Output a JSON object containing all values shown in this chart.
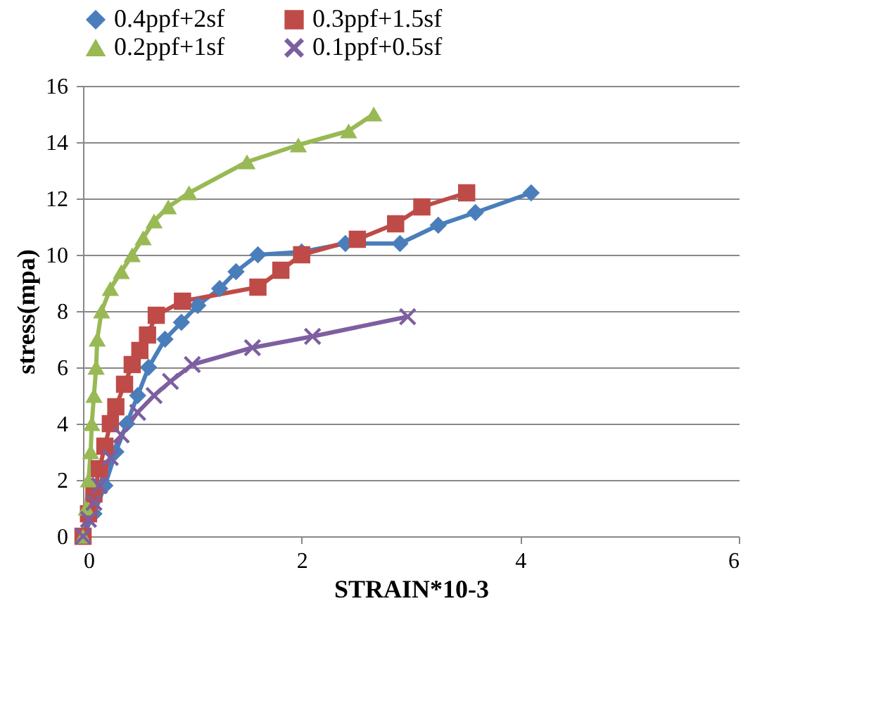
{
  "chart_data": {
    "type": "line",
    "xlabel": "STRAIN*10-3",
    "ylabel": "stress(mpa)",
    "xlim": [
      0,
      6
    ],
    "xticks": [
      0,
      2,
      4,
      6
    ],
    "ylim": [
      0,
      16
    ],
    "yticks": [
      0,
      2,
      4,
      6,
      8,
      10,
      12,
      14,
      16
    ],
    "grid": "y",
    "legend": "top",
    "line_style": "solid",
    "series": [
      {
        "name": "0.4ppf+2sf",
        "color": "#4a7ebb",
        "marker": "diamond",
        "x": [
          0,
          0.1,
          0.2,
          0.3,
          0.4,
          0.5,
          0.6,
          0.75,
          0.9,
          1.05,
          1.25,
          1.4,
          1.6,
          2.0,
          2.4,
          2.9,
          3.25,
          3.59,
          4.1
        ],
        "values": [
          0,
          0.8,
          1.8,
          3,
          4,
          5,
          6,
          7,
          7.6,
          8.2,
          8.8,
          9.4,
          10,
          10.1,
          10.4,
          10.4,
          11.05,
          11.5,
          12.2
        ]
      },
      {
        "name": "0.3ppf+1.5sf",
        "color": "#be4b48",
        "marker": "square",
        "x": [
          0,
          0.05,
          0.1,
          0.15,
          0.2,
          0.25,
          0.3,
          0.38,
          0.45,
          0.52,
          0.59,
          0.67,
          0.91,
          1.6,
          1.81,
          2.0,
          2.51,
          2.86,
          3.1,
          3.51
        ],
        "values": [
          0,
          0.8,
          1.5,
          2.4,
          3.2,
          4,
          4.6,
          5.4,
          6.1,
          6.6,
          7.15,
          7.85,
          8.35,
          8.85,
          9.45,
          10,
          10.55,
          11.1,
          11.7,
          12.2
        ]
      },
      {
        "name": "0.2ppf+1sf",
        "color": "#98b954",
        "marker": "triangle",
        "x": [
          0,
          0.03,
          0.05,
          0.07,
          0.08,
          0.1,
          0.12,
          0.13,
          0.17,
          0.25,
          0.35,
          0.45,
          0.55,
          0.65,
          0.78,
          0.97,
          1.5,
          1.97,
          2.43,
          2.66
        ],
        "values": [
          0,
          1,
          2,
          3,
          4,
          5,
          6,
          7,
          8,
          8.8,
          9.4,
          10,
          10.6,
          11.2,
          11.7,
          12.2,
          13.3,
          13.9,
          14.4,
          15
        ]
      },
      {
        "name": "0.1ppf+0.5sf",
        "color": "#7d5fa0",
        "marker": "cross",
        "x": [
          0,
          0.05,
          0.1,
          0.15,
          0.25,
          0.35,
          0.5,
          0.65,
          0.8,
          1.0,
          1.55,
          2.1,
          2.97
        ],
        "values": [
          0,
          0.6,
          1.2,
          1.8,
          2.8,
          3.6,
          4.4,
          5,
          5.5,
          6.1,
          6.7,
          7.1,
          7.8
        ]
      }
    ]
  }
}
